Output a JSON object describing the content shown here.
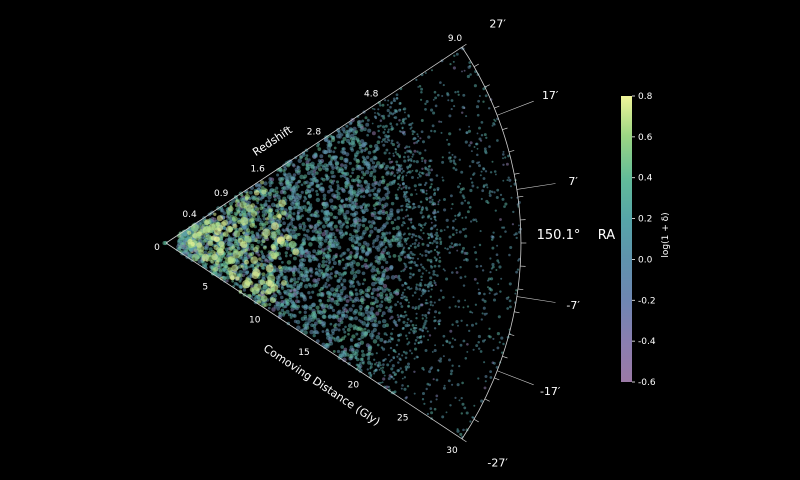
{
  "chart_data": {
    "type": "scatter",
    "projection": "polar-wedge",
    "background": "#000000",
    "colormap": "viridis",
    "point_alpha": 0.55,
    "r_axis": {
      "label": "Comoving Distance (Gly)",
      "range": [
        0,
        30
      ],
      "ticks": [
        "0",
        "5",
        "10",
        "15",
        "20",
        "25",
        "30"
      ]
    },
    "z_axis": {
      "label": "Redshift",
      "ticks": [
        {
          "label": "0.4",
          "r": 3.1
        },
        {
          "label": "0.9",
          "r": 6.3
        },
        {
          "label": "1.6",
          "r": 10.0
        },
        {
          "label": "2.8",
          "r": 15.7
        },
        {
          "label": "4.8",
          "r": 21.5
        },
        {
          "label": "9.0",
          "r": 30.0
        }
      ]
    },
    "dec_axis": {
      "range_arcmin": [
        -27,
        27
      ],
      "ticks": [
        {
          "label": "27′",
          "v": 27
        },
        {
          "label": "17′",
          "v": 17
        },
        {
          "label": "7′",
          "v": 7
        },
        {
          "label": "-7′",
          "v": -7
        },
        {
          "label": "-17′",
          "v": -17
        },
        {
          "label": "-27′",
          "v": -27
        }
      ]
    },
    "center_label": "150.1°",
    "ra_label": "RA",
    "colorbar": {
      "label": "log(1 + δ)",
      "range": [
        -0.6,
        0.8
      ],
      "ticks": [
        "0.8",
        "0.6",
        "0.4",
        "0.2",
        "0.0",
        "-0.2",
        "-0.4",
        "-0.6"
      ],
      "tick_values": [
        0.8,
        0.6,
        0.4,
        0.2,
        0.0,
        -0.2,
        -0.4,
        -0.6
      ]
    }
  }
}
